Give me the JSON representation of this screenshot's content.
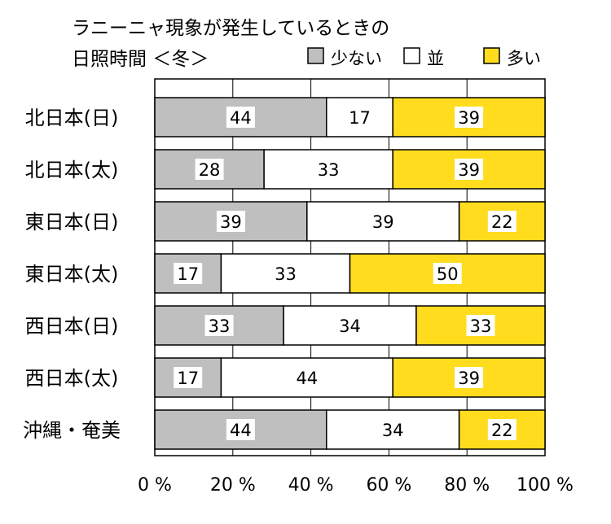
{
  "chart_data": {
    "type": "bar",
    "stacked": true,
    "orientation": "horizontal",
    "title_line1": "ラニーニャ現象が発生しているときの",
    "title_line2": "日照時間 ＜冬＞",
    "categories": [
      "北日本(日)",
      "北日本(太)",
      "東日本(日)",
      "東日本(太)",
      "西日本(日)",
      "西日本(太)",
      "沖縄・奄美"
    ],
    "series": [
      {
        "name": "少ない",
        "color": "#bfbfbf",
        "values": [
          44,
          28,
          39,
          17,
          33,
          17,
          44
        ]
      },
      {
        "name": "並",
        "color": "#ffffff",
        "values": [
          17,
          33,
          39,
          33,
          34,
          44,
          34
        ]
      },
      {
        "name": "多い",
        "color": "#ffdc1e",
        "values": [
          39,
          39,
          22,
          50,
          33,
          39,
          22
        ]
      }
    ],
    "xlim": [
      0,
      100
    ],
    "x_ticks": [
      "0 %",
      "20 %",
      "40 %",
      "60 %",
      "80 %",
      "100 %"
    ],
    "x_tick_values": [
      0,
      20,
      40,
      60,
      80,
      100
    ],
    "grid": true,
    "legend_position": "top-right"
  }
}
